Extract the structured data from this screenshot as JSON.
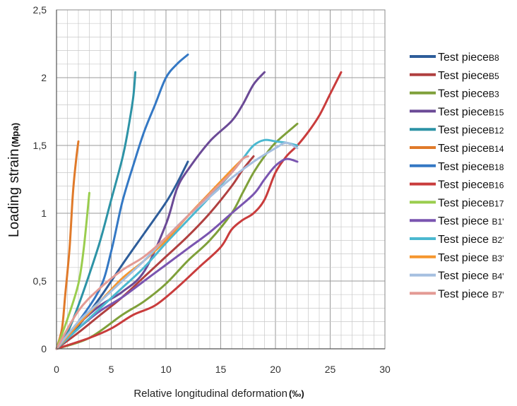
{
  "chart_data": {
    "type": "line",
    "title": "",
    "xlabel": "Relative longitudinal deformation",
    "xlabel_unit": "(‰)",
    "ylabel": "Loading strain",
    "ylabel_unit": "(Mpa)",
    "xlim": [
      0,
      30
    ],
    "ylim": [
      0,
      2.5
    ],
    "x_ticks": [
      0,
      5,
      10,
      15,
      20,
      25,
      30
    ],
    "x_tick_labels": [
      "0",
      "5",
      "10",
      "15",
      "20",
      "25",
      "30"
    ],
    "y_ticks": [
      0,
      0.5,
      1,
      1.5,
      2,
      2.5
    ],
    "y_tick_labels": [
      "0",
      "0,5",
      "1",
      "1,5",
      "2",
      "2,5"
    ],
    "grid": true,
    "grid_minor_x": 1,
    "grid_minor_y": 0.1,
    "legend_position": "right",
    "series": [
      {
        "name": "Test piece",
        "sub": "B8",
        "color": "#2e5d9a",
        "points": [
          [
            0,
            0
          ],
          [
            2,
            0.17
          ],
          [
            4,
            0.38
          ],
          [
            6,
            0.62
          ],
          [
            8,
            0.85
          ],
          [
            10,
            1.08
          ],
          [
            11,
            1.22
          ],
          [
            12,
            1.38
          ]
        ]
      },
      {
        "name": "Test piece",
        "sub": "B5",
        "color": "#b04040",
        "points": [
          [
            0,
            0
          ],
          [
            2,
            0.12
          ],
          [
            4,
            0.25
          ],
          [
            6,
            0.38
          ],
          [
            8,
            0.53
          ],
          [
            10,
            0.68
          ],
          [
            12,
            0.83
          ],
          [
            14,
            1.0
          ],
          [
            16,
            1.2
          ],
          [
            17,
            1.32
          ],
          [
            18,
            1.42
          ]
        ]
      },
      {
        "name": "Test piece",
        "sub": "B3",
        "color": "#7fa03a",
        "points": [
          [
            0,
            0
          ],
          [
            3,
            0.08
          ],
          [
            6,
            0.25
          ],
          [
            8,
            0.35
          ],
          [
            10,
            0.48
          ],
          [
            12,
            0.65
          ],
          [
            14,
            0.8
          ],
          [
            16,
            1.0
          ],
          [
            17,
            1.15
          ],
          [
            18,
            1.3
          ],
          [
            19,
            1.42
          ],
          [
            20,
            1.52
          ],
          [
            22,
            1.66
          ]
        ]
      },
      {
        "name": "Test piece",
        "sub": "B15",
        "color": "#6b4a96",
        "points": [
          [
            0,
            0
          ],
          [
            2,
            0.18
          ],
          [
            4,
            0.32
          ],
          [
            6,
            0.42
          ],
          [
            8,
            0.57
          ],
          [
            10,
            0.92
          ],
          [
            11,
            1.18
          ],
          [
            12,
            1.32
          ],
          [
            14,
            1.53
          ],
          [
            16,
            1.68
          ],
          [
            17,
            1.8
          ],
          [
            18,
            1.95
          ],
          [
            19,
            2.04
          ]
        ]
      },
      {
        "name": "Test piece",
        "sub": "B12",
        "color": "#2d93a6",
        "points": [
          [
            0,
            0
          ],
          [
            1,
            0.12
          ],
          [
            2,
            0.32
          ],
          [
            3,
            0.55
          ],
          [
            4,
            0.8
          ],
          [
            5,
            1.1
          ],
          [
            6,
            1.4
          ],
          [
            6.5,
            1.6
          ],
          [
            7,
            1.85
          ],
          [
            7.2,
            2.04
          ]
        ]
      },
      {
        "name": "Test piece",
        "sub": "B14",
        "color": "#e07a2a",
        "points": [
          [
            0,
            0
          ],
          [
            0.5,
            0.15
          ],
          [
            0.8,
            0.4
          ],
          [
            1.2,
            0.75
          ],
          [
            1.5,
            1.15
          ],
          [
            1.8,
            1.4
          ],
          [
            2,
            1.53
          ]
        ]
      },
      {
        "name": "Test piece",
        "sub": "B18",
        "color": "#3478c4",
        "points": [
          [
            0,
            0
          ],
          [
            2,
            0.2
          ],
          [
            4,
            0.45
          ],
          [
            5,
            0.72
          ],
          [
            6,
            1.08
          ],
          [
            7,
            1.35
          ],
          [
            8,
            1.6
          ],
          [
            9,
            1.8
          ],
          [
            10,
            2.0
          ],
          [
            11,
            2.1
          ],
          [
            12,
            2.17
          ]
        ]
      },
      {
        "name": "Test piece",
        "sub": "B16",
        "color": "#c93c3c",
        "points": [
          [
            0,
            0
          ],
          [
            3,
            0.08
          ],
          [
            5,
            0.15
          ],
          [
            7,
            0.25
          ],
          [
            9,
            0.32
          ],
          [
            11,
            0.45
          ],
          [
            13,
            0.6
          ],
          [
            15,
            0.75
          ],
          [
            16,
            0.88
          ],
          [
            17,
            0.95
          ],
          [
            18,
            1.0
          ],
          [
            19,
            1.1
          ],
          [
            20,
            1.3
          ],
          [
            21,
            1.42
          ],
          [
            22,
            1.5
          ],
          [
            23,
            1.6
          ],
          [
            24,
            1.72
          ],
          [
            25,
            1.88
          ],
          [
            26,
            2.04
          ]
        ]
      },
      {
        "name": "Test piece",
        "sub": "B17",
        "color": "#9acd4e",
        "points": [
          [
            0,
            0
          ],
          [
            1,
            0.22
          ],
          [
            2,
            0.48
          ],
          [
            2.5,
            0.75
          ],
          [
            3,
            1.15
          ]
        ]
      },
      {
        "name": "Test piece",
        "sub": "B1'",
        "color": "#7a55b0",
        "points": [
          [
            0,
            0
          ],
          [
            2,
            0.15
          ],
          [
            4,
            0.28
          ],
          [
            6,
            0.38
          ],
          [
            8,
            0.5
          ],
          [
            10,
            0.62
          ],
          [
            12,
            0.74
          ],
          [
            14,
            0.86
          ],
          [
            16,
            1.0
          ],
          [
            18,
            1.14
          ],
          [
            19,
            1.25
          ],
          [
            20,
            1.35
          ],
          [
            21,
            1.4
          ],
          [
            22,
            1.38
          ]
        ]
      },
      {
        "name": "Test piece",
        "sub": "B2'",
        "color": "#4bb8d0",
        "points": [
          [
            0,
            0
          ],
          [
            2,
            0.15
          ],
          [
            4,
            0.3
          ],
          [
            6,
            0.45
          ],
          [
            8,
            0.6
          ],
          [
            10,
            0.78
          ],
          [
            12,
            0.95
          ],
          [
            14,
            1.12
          ],
          [
            16,
            1.3
          ],
          [
            17,
            1.4
          ],
          [
            18,
            1.5
          ],
          [
            19,
            1.54
          ],
          [
            20,
            1.53
          ],
          [
            21,
            1.52
          ],
          [
            22,
            1.5
          ]
        ]
      },
      {
        "name": "Test piece",
        "sub": "B3'",
        "color": "#f5962e",
        "points": [
          [
            0,
            0
          ],
          [
            2,
            0.18
          ],
          [
            4,
            0.35
          ],
          [
            6,
            0.52
          ],
          [
            8,
            0.65
          ],
          [
            10,
            0.8
          ],
          [
            12,
            0.98
          ],
          [
            14,
            1.15
          ],
          [
            16,
            1.32
          ],
          [
            17,
            1.4
          ]
        ]
      },
      {
        "name": "Test piece",
        "sub": "B4'",
        "color": "#a5bfe0",
        "points": [
          [
            0,
            0
          ],
          [
            2,
            0.2
          ],
          [
            4,
            0.35
          ],
          [
            6,
            0.5
          ],
          [
            8,
            0.65
          ],
          [
            10,
            0.82
          ],
          [
            12,
            0.98
          ],
          [
            14,
            1.12
          ],
          [
            16,
            1.26
          ],
          [
            18,
            1.38
          ],
          [
            20,
            1.48
          ],
          [
            21,
            1.52
          ],
          [
            22,
            1.48
          ]
        ]
      },
      {
        "name": "Test piece",
        "sub": "B7'",
        "color": "#e39a94",
        "points": [
          [
            0,
            0
          ],
          [
            2,
            0.28
          ],
          [
            4,
            0.45
          ],
          [
            6,
            0.58
          ],
          [
            8,
            0.68
          ],
          [
            10,
            0.82
          ],
          [
            12,
            0.98
          ],
          [
            14,
            1.14
          ],
          [
            16,
            1.3
          ],
          [
            17,
            1.4
          ],
          [
            17.5,
            1.42
          ]
        ]
      }
    ]
  }
}
